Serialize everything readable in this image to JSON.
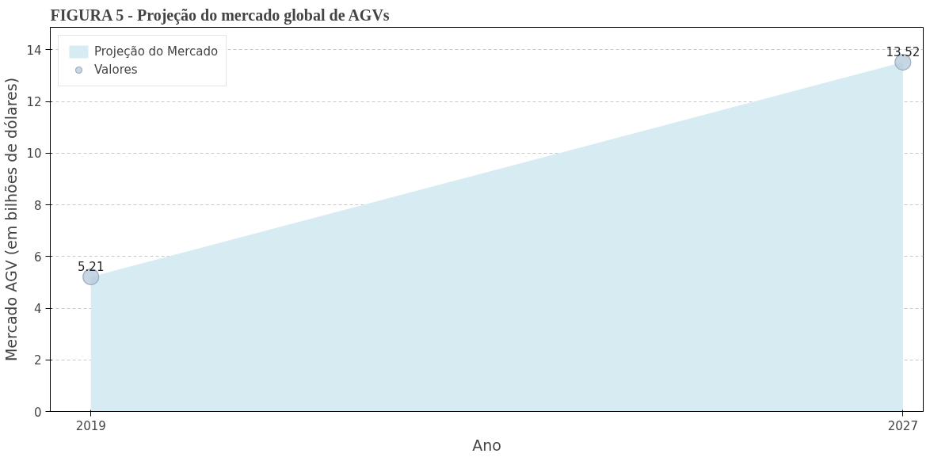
{
  "chart_data": {
    "type": "area",
    "title": "FIGURA 5 - Projeção do mercado global de AGVs",
    "xlabel": "Ano",
    "ylabel": "Mercado AGV (em bilhões de dólares)",
    "x": [
      2019,
      2027
    ],
    "series": [
      {
        "name": "Projeção do Mercado",
        "color": "#d6ebf2",
        "values": [
          5.21,
          13.52
        ]
      },
      {
        "name": "Valores",
        "type": "scatter",
        "marker": "circle",
        "color": "#b4c8da",
        "values": [
          5.21,
          13.52
        ],
        "value_labels": [
          "5.21",
          "13.52"
        ]
      }
    ],
    "xlim": [
      2018.6,
      2027.2
    ],
    "ylim": [
      0,
      14.87
    ],
    "xticks": [
      2019,
      2027
    ],
    "yticks": [
      0,
      2,
      4,
      6,
      8,
      10,
      12,
      14
    ],
    "grid": "y",
    "legend": "top left"
  }
}
